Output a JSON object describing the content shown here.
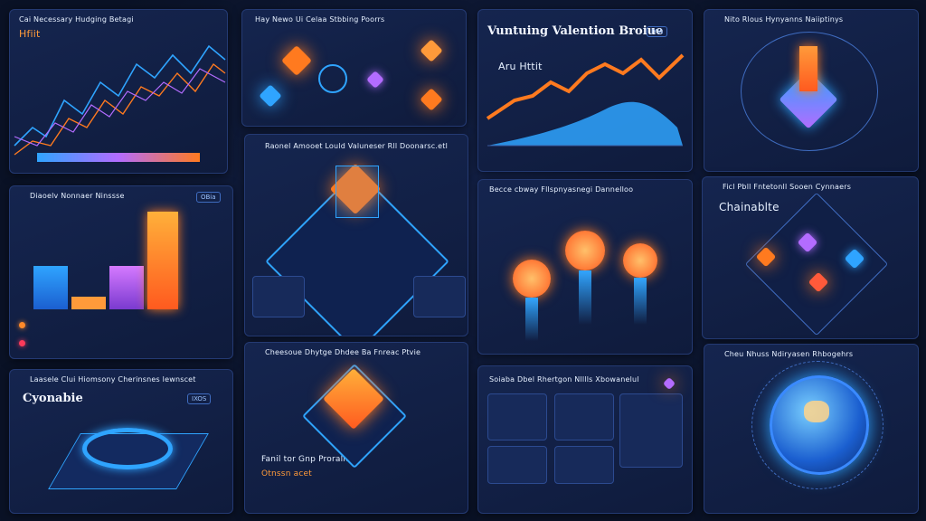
{
  "panels": {
    "p1": {
      "title": "Cai Necessary Hudging Betagi",
      "subtitle": "Hfiit",
      "logo": ""
    },
    "p2": {
      "title": "Hay Newo Ui Celaa Stbbing Poorrs",
      "logo": ""
    },
    "p3": {
      "title": "Vuntuing Valention Broiue",
      "subtitle": "Aru Httit",
      "logo": "IYIA"
    },
    "p4": {
      "title": "Nito Rlous Hynyanns Naiiptinys",
      "logo": ""
    },
    "p5": {
      "title": "Diaoelv Nonnaer Ninssse",
      "logo": "OBia"
    },
    "p6": {
      "title": "Raonel Amooet Lould Valuneser Rll Doonarsc.etl",
      "logo": ""
    },
    "p7": {
      "title": "Becce cbway Fllspnyasnegi Dannelloo",
      "logo": ""
    },
    "p8": {
      "title": "Ficl Pbll Fntetonll Sooen Cynnaers",
      "subtitle": "Chainablte",
      "logo": ""
    },
    "p9": {
      "title": "Laasele Clui Hiomsony Cherinsnes lewnscet",
      "subtitle": "Cyonabie",
      "logo": "IXOS"
    },
    "p10": {
      "title": "Cheesoue Dhytge Dhdee Ba Fnreac Ptvie",
      "subtitle": "Fanil tor Gnp Prorallo",
      "note": "Otnssn acet",
      "logo": ""
    },
    "p11": {
      "title": "Soiaba Dbel Rhertgon Nlllls Xbowanelul",
      "logo": ""
    },
    "p12": {
      "title": "Cheu Nhuss Ndiryasen Rhbogehrs",
      "logo": ""
    }
  },
  "colors": {
    "orange": "#ff7a1f",
    "blue": "#2fa4ff",
    "purple": "#b36cff",
    "bg": "#0a1226"
  }
}
